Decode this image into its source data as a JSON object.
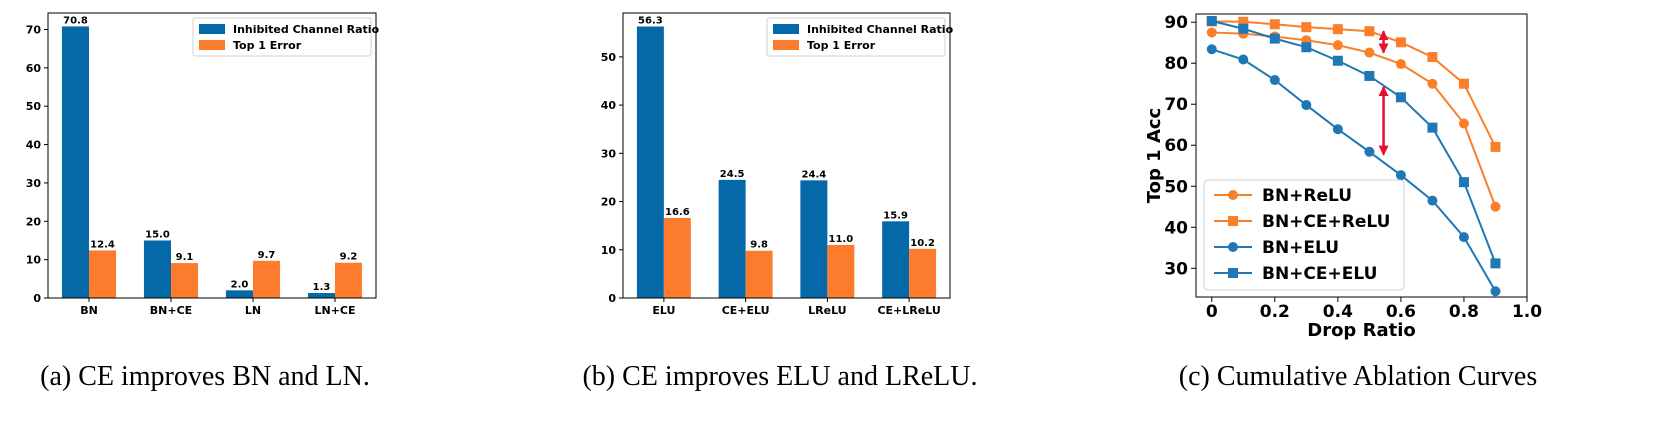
{
  "colors": {
    "blue": "#0569a7",
    "orange": "#fd7b2c",
    "orange_line": "#f97f2a",
    "blue_line": "#1f77b4",
    "arrow": "#e8102e"
  },
  "chart_data": [
    {
      "id": "a",
      "type": "bar",
      "caption": "(a) CE improves BN and LN.",
      "categories": [
        "BN",
        "BN+CE",
        "LN",
        "LN+CE"
      ],
      "series": [
        {
          "name": "Inhibited Channel Ratio",
          "values": [
            70.8,
            15.0,
            2.0,
            1.3
          ],
          "labels": [
            "70.8",
            "15.0",
            "2.0",
            "1.3"
          ]
        },
        {
          "name": "Top 1 Error",
          "values": [
            12.4,
            9.1,
            9.7,
            9.2
          ],
          "labels": [
            "12.4",
            "9.1",
            "9.7",
            "9.2"
          ]
        }
      ],
      "ylim": [
        0,
        74.3
      ],
      "yticks": [
        0,
        10,
        20,
        30,
        40,
        50,
        60,
        70
      ],
      "legend": "top-right",
      "grid": false
    },
    {
      "id": "b",
      "type": "bar",
      "caption": "(b) CE improves ELU and LReLU.",
      "categories": [
        "ELU",
        "CE+ELU",
        "LReLU",
        "CE+LReLU"
      ],
      "series": [
        {
          "name": "Inhibited Channel Ratio",
          "values": [
            56.3,
            24.5,
            24.4,
            15.9
          ],
          "labels": [
            "56.3",
            "24.5",
            "24.4",
            "15.9"
          ]
        },
        {
          "name": "Top 1 Error",
          "values": [
            16.6,
            9.8,
            11.0,
            10.2
          ],
          "labels": [
            "16.6",
            "9.8",
            "11.0",
            "10.2"
          ]
        }
      ],
      "ylim": [
        0,
        59.1
      ],
      "yticks": [
        0,
        10,
        20,
        30,
        40,
        50
      ],
      "legend": "top-right",
      "grid": false
    },
    {
      "id": "c",
      "type": "line",
      "caption": "(c) Cumulative Ablation Curves",
      "xlabel": "Drop Ratio",
      "ylabel": "Top 1 Acc",
      "xlim": [
        -0.05,
        1.0
      ],
      "ylim": [
        23,
        92
      ],
      "xticks": [
        0,
        0.2,
        0.4,
        0.6,
        0.8,
        1.0
      ],
      "xtick_labels": [
        "0",
        "0.2",
        "0.4",
        "0.6",
        "0.8",
        "1.0"
      ],
      "yticks": [
        30,
        40,
        50,
        60,
        70,
        80,
        90
      ],
      "x": [
        0,
        0.1,
        0.2,
        0.3,
        0.4,
        0.5,
        0.6,
        0.7,
        0.8,
        0.9
      ],
      "series": [
        {
          "name": "BN+ReLU",
          "color": "orange",
          "marker": "circle",
          "values": [
            87.5,
            87.2,
            86.5,
            85.6,
            84.4,
            82.6,
            79.8,
            75.0,
            65.3,
            45.0
          ]
        },
        {
          "name": "BN+CE+ReLU",
          "color": "orange",
          "marker": "square",
          "values": [
            90.2,
            90.1,
            89.5,
            88.8,
            88.3,
            87.8,
            85.1,
            81.5,
            75.0,
            59.6
          ]
        },
        {
          "name": "BN+ELU",
          "color": "blue",
          "marker": "circle",
          "values": [
            83.4,
            80.9,
            75.9,
            69.8,
            63.9,
            58.4,
            52.7,
            46.5,
            37.6,
            24.4
          ]
        },
        {
          "name": "BN+CE+ELU",
          "color": "blue",
          "marker": "square",
          "values": [
            90.3,
            88.4,
            86.0,
            83.9,
            80.6,
            76.9,
            71.7,
            64.3,
            51.0,
            31.2
          ]
        }
      ],
      "annotations": [
        {
          "type": "double-arrow",
          "x": 0.545,
          "y_from": 82.6,
          "y_to": 87.8
        },
        {
          "type": "double-arrow",
          "x": 0.545,
          "y_from": 57.7,
          "y_to": 74.2
        }
      ],
      "legend": "lower-left",
      "grid": false
    }
  ]
}
